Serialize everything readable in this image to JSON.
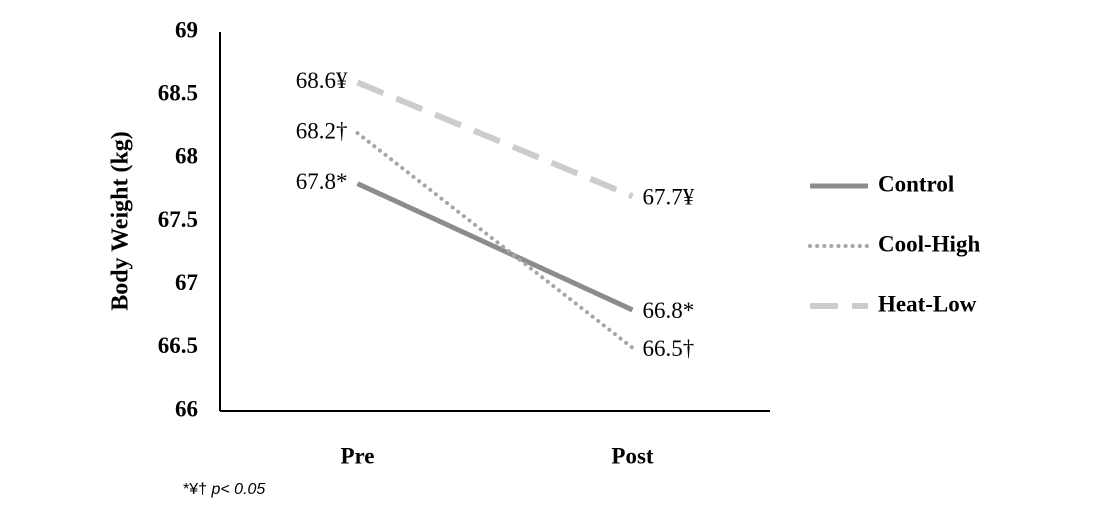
{
  "chart_data": {
    "type": "line",
    "y_label": "Body Weight (kg)",
    "categories": [
      "Pre",
      "Post"
    ],
    "series": [
      {
        "name": "Control",
        "color": "#8c8c8c",
        "style": "solid",
        "values": [
          67.8,
          66.8
        ],
        "value_labels": [
          "67.8*",
          "66.8*"
        ]
      },
      {
        "name": "Cool-High",
        "color": "#a6a6a6",
        "style": "dotted",
        "values": [
          68.2,
          66.5
        ],
        "value_labels": [
          "68.2†",
          "66.5†"
        ]
      },
      {
        "name": "Heat-Low",
        "color": "#cccccc",
        "style": "dashed",
        "values": [
          68.6,
          67.7
        ],
        "value_labels": [
          "68.6¥",
          "67.7¥"
        ]
      }
    ],
    "ylim": [
      66,
      69
    ],
    "yticks": [
      66,
      66.5,
      67,
      67.5,
      68,
      68.5,
      69
    ],
    "grid": false,
    "legend": "right",
    "footnote": {
      "symbols": "*¥†",
      "text": "p< 0.05"
    }
  }
}
